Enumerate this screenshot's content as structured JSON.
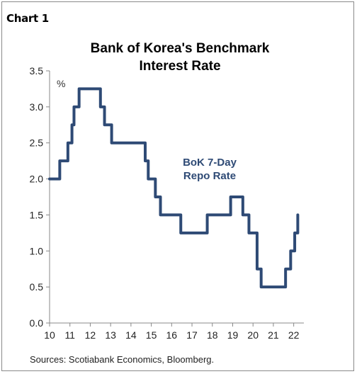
{
  "header": {
    "chart_label": "Chart 1"
  },
  "footer": {
    "source": "Sources: Scotiabank Economics, Bloomberg."
  },
  "chart_data": {
    "type": "line",
    "title": "Bank of Korea's Benchmark Interest Rate",
    "title_lines": [
      "Bank of Korea's Benchmark",
      "Interest Rate"
    ],
    "unit_label": "%",
    "xlabel": "",
    "ylabel": "",
    "xlim": [
      10,
      22.5
    ],
    "ylim": [
      0,
      3.5
    ],
    "x_ticks": [
      10,
      11,
      12,
      13,
      14,
      15,
      16,
      17,
      18,
      19,
      20,
      21,
      22
    ],
    "x_tick_labels": [
      "10",
      "11",
      "12",
      "13",
      "14",
      "15",
      "16",
      "17",
      "18",
      "19",
      "20",
      "21",
      "22"
    ],
    "y_ticks": [
      0,
      0.5,
      1,
      1.5,
      2,
      2.5,
      3,
      3.5
    ],
    "y_tick_labels": [
      "0.0",
      "0.5",
      "1.0",
      "1.5",
      "2.0",
      "2.5",
      "3.0",
      "3.5"
    ],
    "grid": false,
    "legend": "inline",
    "series": [
      {
        "name": "BoK 7-Day Repo Rate",
        "label_lines": [
          "BoK 7-Day",
          "Repo Rate"
        ],
        "color": "#2e4a75",
        "step": true,
        "x": [
          10.0,
          10.5,
          10.9,
          11.1,
          11.2,
          11.45,
          12.5,
          12.7,
          13.05,
          14.7,
          14.85,
          15.2,
          15.45,
          16.45,
          17.75,
          18.9,
          19.5,
          19.8,
          20.2,
          20.4,
          21.6,
          21.85,
          22.05,
          22.2
        ],
        "values": [
          2.0,
          2.25,
          2.5,
          2.75,
          3.0,
          3.25,
          3.0,
          2.75,
          2.5,
          2.25,
          2.0,
          1.75,
          1.5,
          1.25,
          1.5,
          1.75,
          1.5,
          1.25,
          0.75,
          0.5,
          0.75,
          1.0,
          1.25,
          1.5
        ]
      }
    ]
  }
}
